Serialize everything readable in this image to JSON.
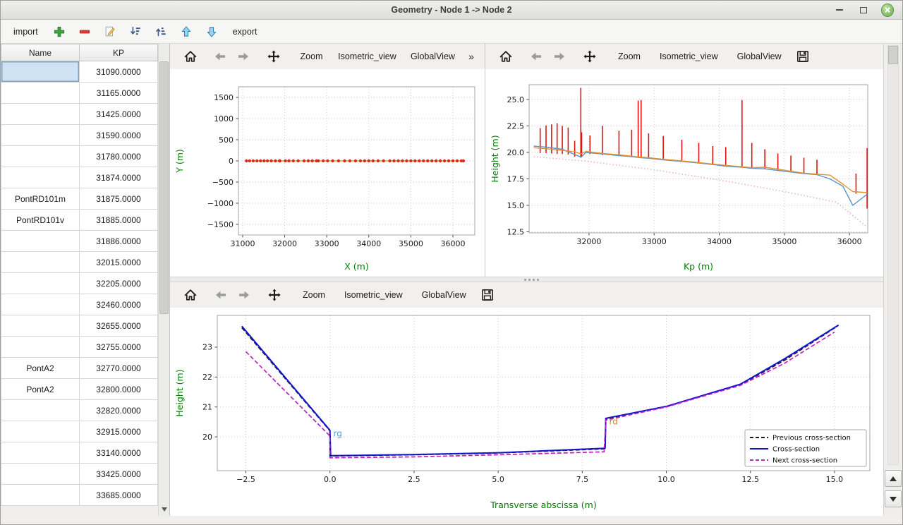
{
  "window": {
    "title": "Geometry - Node 1 -> Node 2"
  },
  "colors": {
    "axis_label": "#008000",
    "selection": "#cfe3f4",
    "close_button": "#69a84e",
    "grid": "#c6c6c6"
  },
  "toolbar": {
    "import_label": "import",
    "export_label": "export",
    "icons": [
      "add-icon",
      "remove-icon",
      "edit-icon",
      "sort-descending-icon",
      "sort-ascending-icon",
      "move-up-icon",
      "move-down-icon"
    ]
  },
  "plot_toolbars": {
    "zoom_label": "Zoom",
    "isometric_label": "Isometric_view",
    "global_label": "GlobalView",
    "overflow_label": "»",
    "icon_buttons": [
      "home-icon",
      "back-icon",
      "forward-icon",
      "pan-icon",
      "save-icon"
    ]
  },
  "table": {
    "columns": [
      "Name",
      "KP"
    ],
    "selected_row": 0,
    "rows": [
      {
        "name": "",
        "kp": "31090.0000"
      },
      {
        "name": "",
        "kp": "31165.0000"
      },
      {
        "name": "",
        "kp": "31425.0000"
      },
      {
        "name": "",
        "kp": "31590.0000"
      },
      {
        "name": "",
        "kp": "31780.0000"
      },
      {
        "name": "",
        "kp": "31874.0000"
      },
      {
        "name": "PontRD101m",
        "kp": "31875.0000"
      },
      {
        "name": "PontRD101v",
        "kp": "31885.0000"
      },
      {
        "name": "",
        "kp": "31886.0000"
      },
      {
        "name": "",
        "kp": "32015.0000"
      },
      {
        "name": "",
        "kp": "32205.0000"
      },
      {
        "name": "",
        "kp": "32460.0000"
      },
      {
        "name": "",
        "kp": "32655.0000"
      },
      {
        "name": "",
        "kp": "32755.0000"
      },
      {
        "name": "PontA2",
        "kp": "32770.0000"
      },
      {
        "name": "PontA2",
        "kp": "32800.0000"
      },
      {
        "name": "",
        "kp": "32820.0000"
      },
      {
        "name": "",
        "kp": "32915.0000"
      },
      {
        "name": "",
        "kp": "33140.0000"
      },
      {
        "name": "",
        "kp": "33425.0000"
      },
      {
        "name": "",
        "kp": "33685.0000"
      }
    ]
  },
  "chart_data": [
    {
      "id": "chart1",
      "type": "scatter",
      "title": "",
      "xlabel": "X (m)",
      "ylabel": "Y (m)",
      "xlim": [
        30900,
        36520
      ],
      "ylim": [
        -1750,
        1750
      ],
      "xticks": [
        31000,
        32000,
        33000,
        34000,
        35000,
        36000
      ],
      "xtick_labels": [
        "31000",
        "32000",
        "33000",
        "34000",
        "35000",
        "36000"
      ],
      "yticks": [
        -1500,
        -1000,
        -500,
        0,
        500,
        1000,
        1500
      ],
      "ytick_labels": [
        "−1500",
        "−1000",
        "−500",
        "0",
        "500",
        "1000",
        "1500"
      ],
      "grid": true,
      "series": [
        {
          "name": "river-axis-line",
          "type": "line",
          "color": "#e8842c",
          "width": 1.2,
          "x": [
            31090,
            36250
          ],
          "y": [
            0,
            0
          ]
        },
        {
          "name": "cross-section-points",
          "type": "markers",
          "color": "#d92b1c",
          "size": 2.2,
          "x": [
            31090,
            31165,
            31250,
            31340,
            31425,
            31510,
            31590,
            31680,
            31780,
            31875,
            31886,
            32015,
            32100,
            32205,
            32320,
            32460,
            32560,
            32655,
            32755,
            32800,
            32915,
            33020,
            33140,
            33280,
            33425,
            33550,
            33685,
            33800,
            33900,
            34000,
            34100,
            34220,
            34350,
            34500,
            34600,
            34700,
            34800,
            34900,
            35000,
            35100,
            35200,
            35300,
            35400,
            35500,
            35600,
            35700,
            35800,
            35900,
            36000,
            36100,
            36200,
            36250
          ],
          "y": 0
        }
      ]
    },
    {
      "id": "chart2",
      "type": "line",
      "title": "",
      "xlabel": "Kp (m)",
      "ylabel": "Height (m)",
      "xlim": [
        31080,
        36280
      ],
      "ylim": [
        12.4,
        26.4
      ],
      "xticks": [
        32000,
        33000,
        34000,
        35000,
        36000
      ],
      "xtick_labels": [
        "32000",
        "33000",
        "34000",
        "35000",
        "36000"
      ],
      "yticks": [
        12.5,
        15.0,
        17.5,
        20.0,
        22.5,
        25.0
      ],
      "ytick_labels": [
        "12.5",
        "15.0",
        "17.5",
        "20.0",
        "22.5",
        "25.0"
      ],
      "grid": true,
      "series": [
        {
          "name": "section-extent-bars",
          "type": "vlines",
          "color": "#e01410",
          "width": 1.6,
          "segments": [
            [
              31250,
              19.95,
              22.3
            ],
            [
              31340,
              19.95,
              22.55
            ],
            [
              31425,
              19.9,
              22.65
            ],
            [
              31510,
              19.85,
              22.75
            ],
            [
              31590,
              19.85,
              22.5
            ],
            [
              31680,
              19.8,
              22.35
            ],
            [
              31780,
              19.6,
              21.1
            ],
            [
              31874,
              19.5,
              26.1
            ],
            [
              31886,
              19.55,
              21.9
            ],
            [
              32015,
              19.85,
              21.6
            ],
            [
              32205,
              19.75,
              22.5
            ],
            [
              32460,
              19.65,
              22.05
            ],
            [
              32655,
              19.55,
              22.15
            ],
            [
              32755,
              19.5,
              24.9
            ],
            [
              32800,
              19.5,
              24.95
            ],
            [
              32915,
              19.45,
              21.8
            ],
            [
              33140,
              19.3,
              21.55
            ],
            [
              33425,
              19.15,
              21.2
            ],
            [
              33685,
              19.0,
              20.9
            ],
            [
              33900,
              18.85,
              20.6
            ],
            [
              34100,
              18.7,
              20.5
            ],
            [
              34350,
              18.6,
              24.95
            ],
            [
              34500,
              18.5,
              20.9
            ],
            [
              34700,
              18.45,
              20.3
            ],
            [
              34900,
              18.3,
              19.9
            ],
            [
              35100,
              18.15,
              19.7
            ],
            [
              35300,
              18.0,
              19.5
            ],
            [
              35500,
              17.9,
              19.3
            ],
            [
              36100,
              16.1,
              18.0
            ],
            [
              36270,
              14.7,
              20.4
            ]
          ]
        },
        {
          "name": "bed-profile-blue",
          "type": "line",
          "color": "#5b94c8",
          "width": 1.4,
          "x": [
            31150,
            31340,
            31590,
            31780,
            31880,
            31950,
            32205,
            32460,
            32655,
            32800,
            32915,
            33140,
            33425,
            33685,
            33900,
            34100,
            34350,
            34500,
            34700,
            34900,
            35100,
            35300,
            35500,
            35700,
            35900,
            36050,
            36270
          ],
          "y": [
            20.6,
            20.5,
            20.3,
            19.8,
            19.55,
            20.0,
            19.85,
            19.7,
            19.6,
            19.5,
            19.45,
            19.3,
            19.15,
            19.0,
            18.85,
            18.7,
            18.6,
            18.5,
            18.45,
            18.3,
            18.15,
            18.0,
            17.9,
            17.5,
            16.8,
            15.0,
            16.05
          ]
        },
        {
          "name": "bed-profile-orange",
          "type": "line",
          "color": "#e2922f",
          "width": 1.4,
          "x": [
            31150,
            31340,
            31590,
            31780,
            31880,
            31950,
            32205,
            32460,
            32655,
            32800,
            32915,
            33140,
            33425,
            33685,
            33900,
            34100,
            34350,
            34500,
            34700,
            34900,
            35100,
            35300,
            35500,
            35700,
            35900,
            36050,
            36270
          ],
          "y": [
            20.45,
            20.35,
            20.2,
            20.05,
            19.85,
            20.1,
            19.9,
            19.78,
            19.65,
            19.55,
            19.5,
            19.35,
            19.2,
            19.05,
            18.9,
            18.78,
            18.65,
            18.55,
            18.6,
            18.42,
            18.22,
            18.05,
            17.95,
            17.85,
            17.0,
            16.3,
            16.2
          ]
        },
        {
          "name": "lower-envelope-dotted",
          "type": "line",
          "color": "#f2afc3",
          "width": 1.6,
          "dash": "1.5,3",
          "x": [
            31150,
            32000,
            33000,
            34000,
            35000,
            35800,
            36270
          ],
          "y": [
            19.6,
            19.15,
            18.35,
            17.4,
            16.3,
            15.3,
            12.95
          ]
        }
      ]
    },
    {
      "id": "chart3",
      "type": "line",
      "title": "",
      "xlabel": "Transverse abscissa (m)",
      "ylabel": "Height (m)",
      "xlim": [
        -3.35,
        16.05
      ],
      "ylim": [
        18.87,
        24.06
      ],
      "xticks": [
        -2.5,
        0.0,
        2.5,
        5.0,
        7.5,
        10.0,
        12.5,
        15.0
      ],
      "xtick_labels": [
        "−2.5",
        "0.0",
        "2.5",
        "5.0",
        "7.5",
        "10.0",
        "12.5",
        "15.0"
      ],
      "yticks": [
        20,
        21,
        22,
        23
      ],
      "ytick_labels": [
        "20",
        "21",
        "22",
        "23"
      ],
      "grid": true,
      "series": [
        {
          "name": "previous-cross-section",
          "type": "line",
          "color": "#1a1a1a",
          "width": 1.7,
          "dash": "6,3",
          "x": [
            -2.62,
            0.0,
            0.0,
            2.5,
            5.0,
            8.18,
            8.2,
            10.0,
            12.2,
            13.5,
            15.1
          ],
          "y": [
            23.65,
            20.2,
            19.36,
            19.4,
            19.46,
            19.6,
            20.6,
            21.0,
            21.74,
            22.55,
            23.71
          ]
        },
        {
          "name": "cross-section",
          "type": "line",
          "color": "#1414cc",
          "width": 2.0,
          "x": [
            -2.62,
            0.0,
            0.02,
            2.5,
            5.0,
            8.18,
            8.2,
            10.0,
            12.2,
            13.5,
            15.12
          ],
          "y": [
            23.7,
            20.22,
            19.37,
            19.41,
            19.47,
            19.62,
            20.62,
            21.02,
            21.76,
            22.6,
            23.74
          ]
        },
        {
          "name": "next-cross-section",
          "type": "line",
          "color": "#c41fc4",
          "width": 1.7,
          "dash": "6,3",
          "x": [
            -2.5,
            0.0,
            0.0,
            2.5,
            5.0,
            8.15,
            8.2,
            10.0,
            12.2,
            13.5,
            15.0
          ],
          "y": [
            22.85,
            20.03,
            19.3,
            19.33,
            19.4,
            19.5,
            20.56,
            21.0,
            21.72,
            22.45,
            23.5
          ]
        }
      ],
      "annotations": [
        {
          "text": "rg",
          "x": 0.1,
          "y": 20.02,
          "color": "#56a0d3"
        },
        {
          "text": "rd",
          "x": 8.3,
          "y": 20.42,
          "color": "#e87a2e"
        }
      ],
      "legend": {
        "position": "lower right",
        "entries": [
          {
            "label": "Previous cross-section",
            "color": "#1a1a1a",
            "dash": "5,3"
          },
          {
            "label": "Cross-section",
            "color": "#1414cc",
            "dash": null
          },
          {
            "label": "Next cross-section",
            "color": "#c41fc4",
            "dash": "5,3"
          }
        ]
      }
    }
  ]
}
